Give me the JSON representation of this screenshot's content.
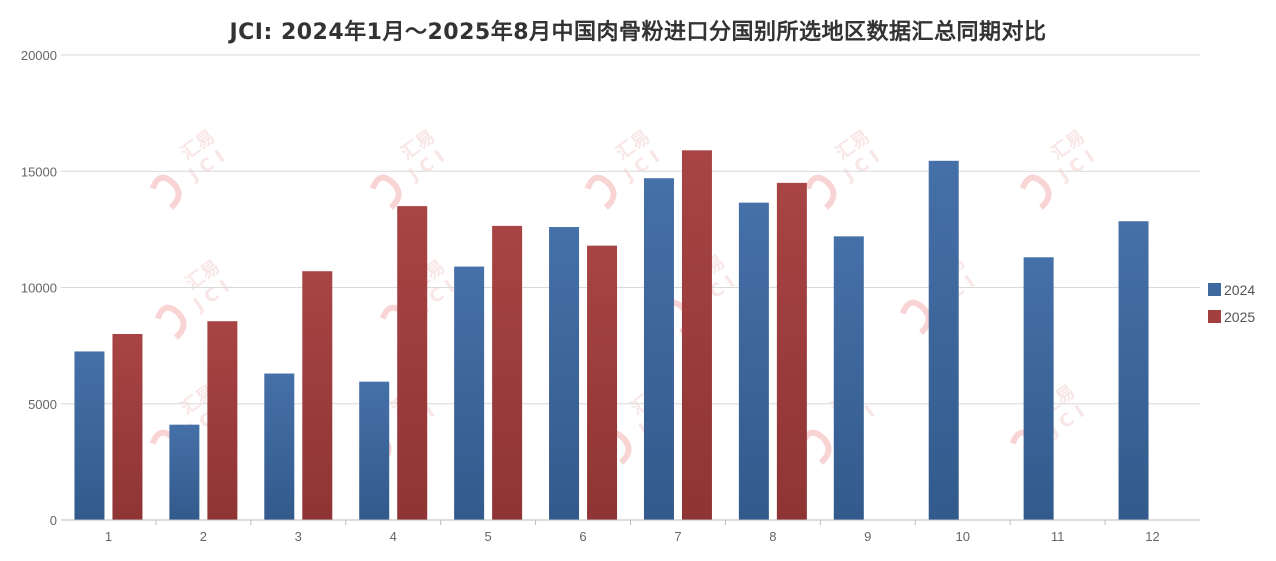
{
  "chart_data": {
    "type": "bar",
    "title": "JCI: 2024年1月～2025年8月中国肉骨粉进口分国别所选地区数据汇总同期对比",
    "categories": [
      "1",
      "2",
      "3",
      "4",
      "5",
      "6",
      "7",
      "8",
      "9",
      "10",
      "11",
      "12"
    ],
    "series": [
      {
        "name": "2024",
        "color": "#3e6aa0",
        "values": [
          7250,
          4100,
          6300,
          5950,
          10900,
          12600,
          14700,
          13650,
          12200,
          15450,
          11300,
          12850
        ]
      },
      {
        "name": "2025",
        "color": "#a23f3f",
        "values": [
          8000,
          8550,
          10700,
          13500,
          12650,
          11800,
          15900,
          14500,
          null,
          null,
          null,
          null
        ]
      }
    ],
    "yticks": [
      0,
      5000,
      10000,
      15000,
      20000
    ],
    "ylim": [
      0,
      20000
    ],
    "grid": true,
    "legend_position": "right",
    "watermark": {
      "brand": "汇易",
      "logo": "JCI"
    }
  }
}
